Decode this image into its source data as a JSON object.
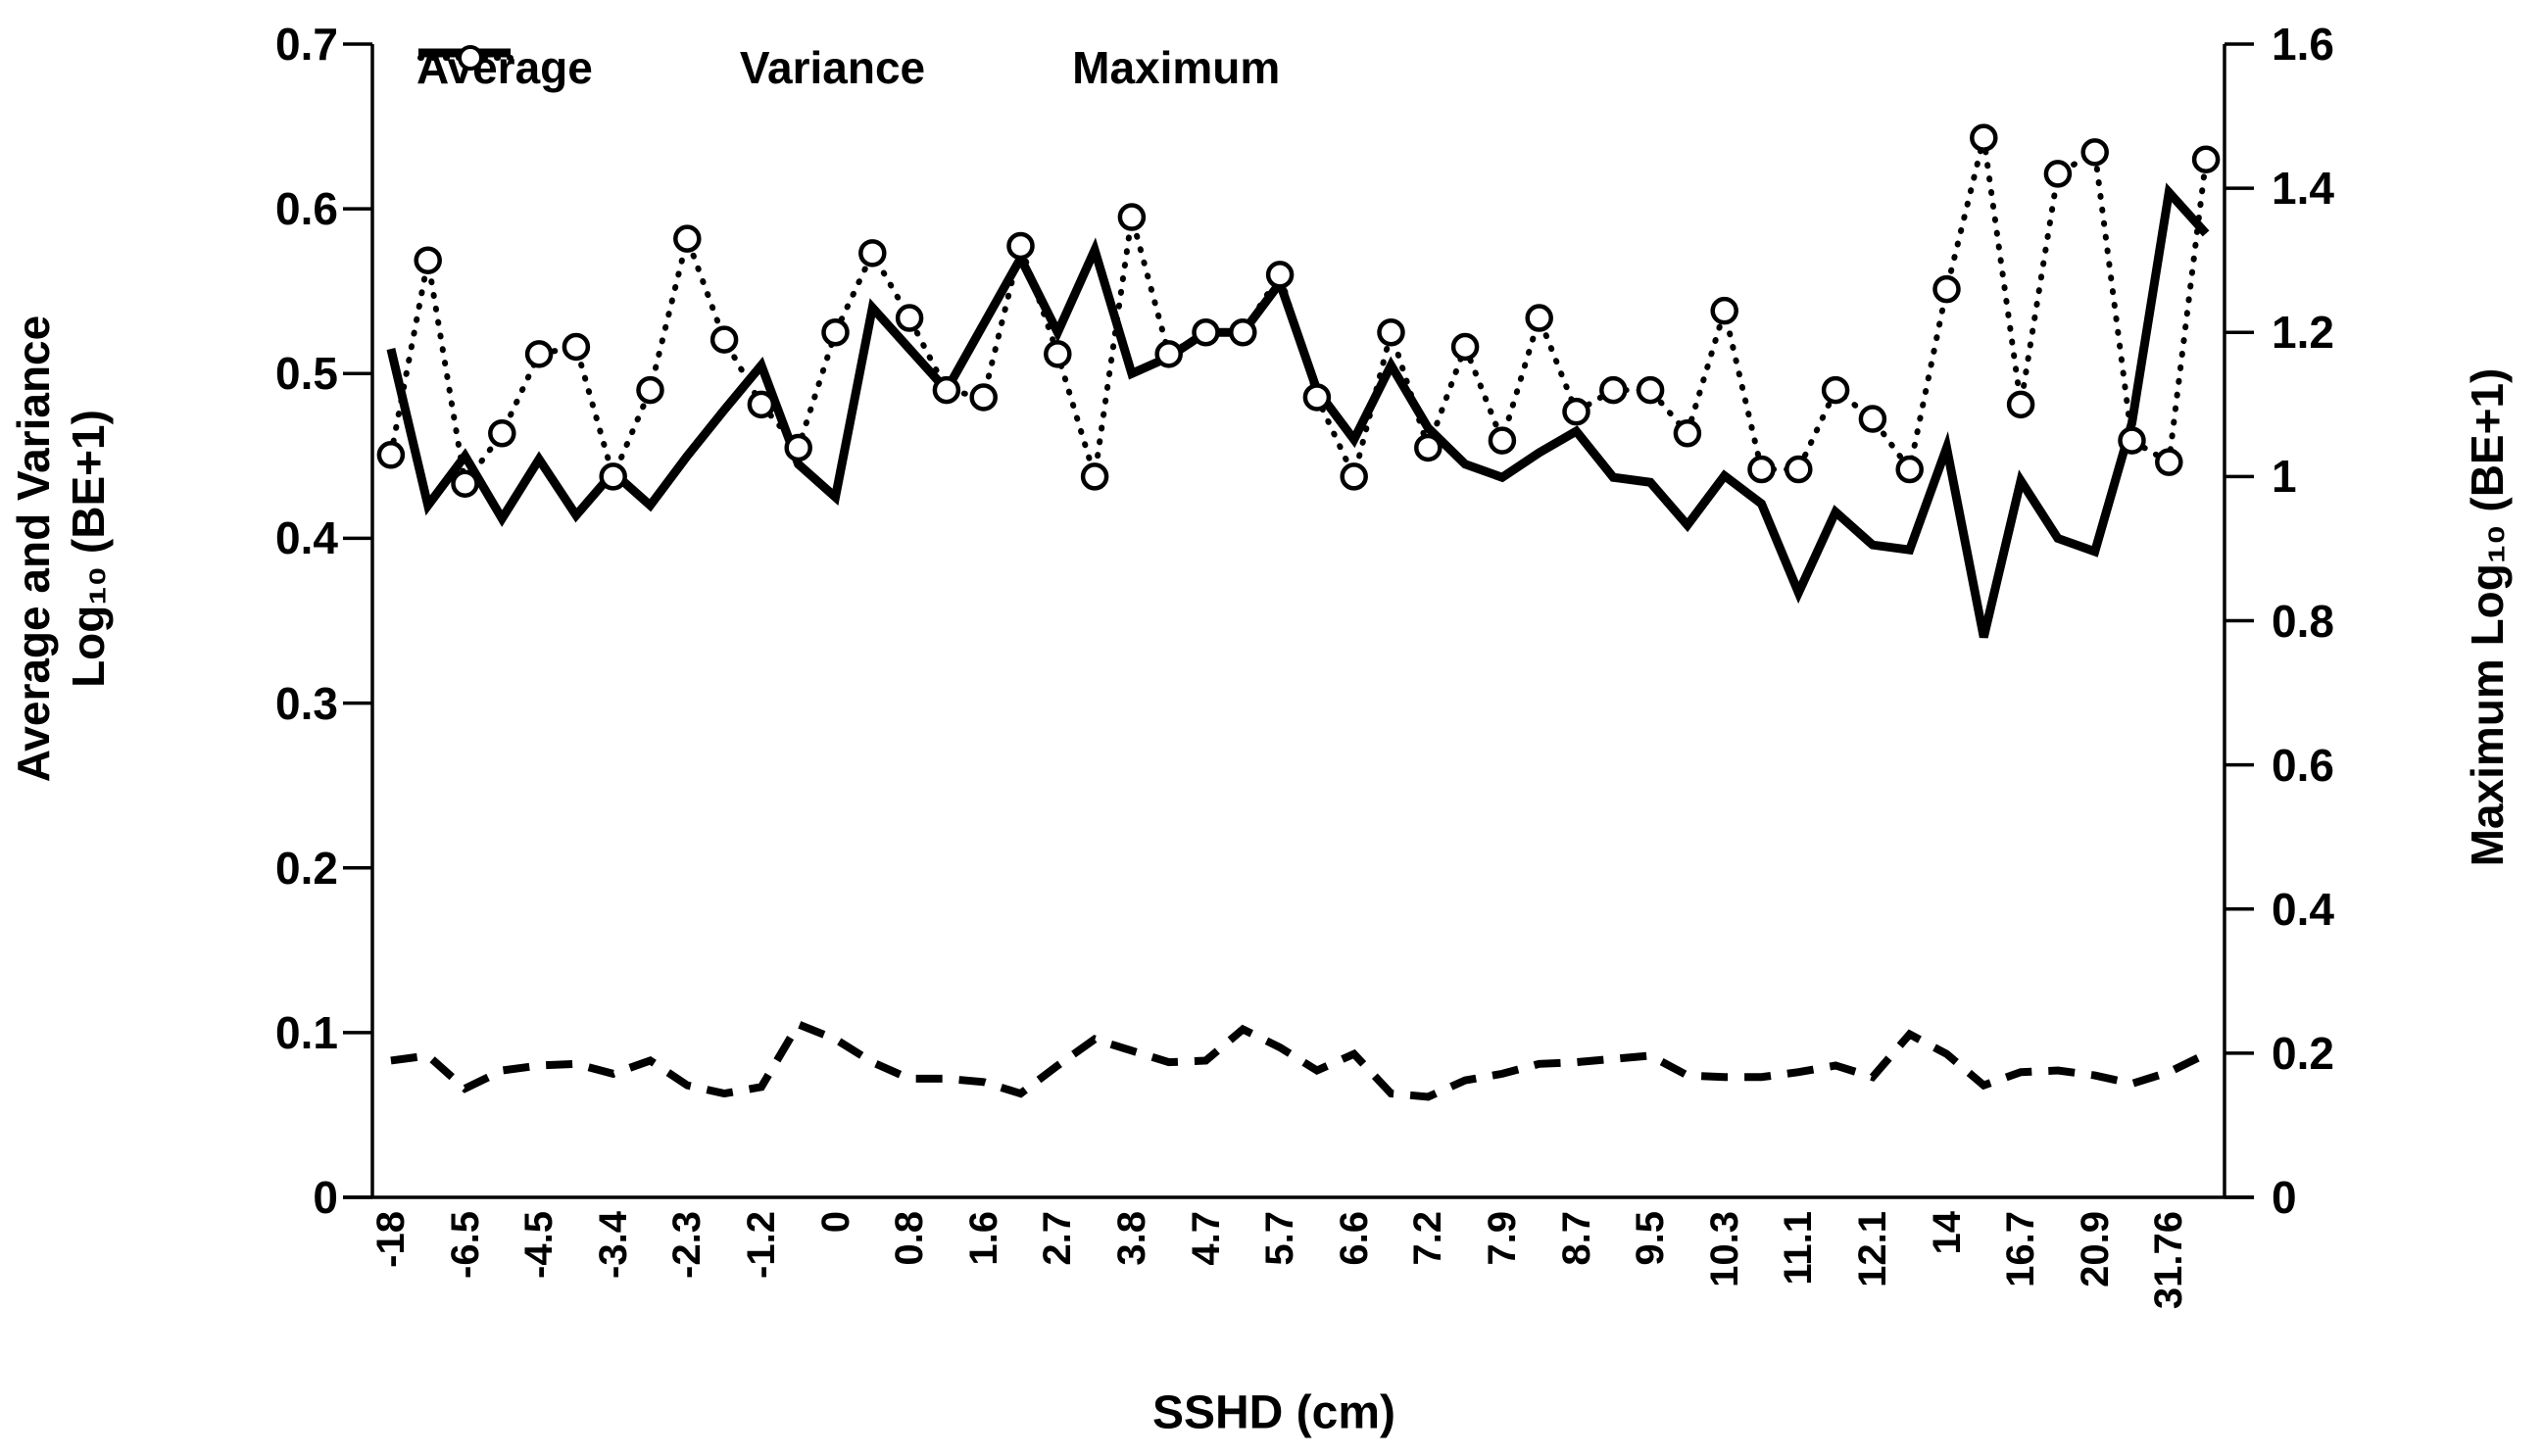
{
  "axes": {
    "y_left_title_line1": "Average and Variance",
    "y_left_title_line2": "Log₁₀ (BE+1)",
    "y_right_title": "Maximum Log₁₀ (BE+1)",
    "x_title": "SSHD (cm)"
  },
  "chart_data": {
    "type": "line",
    "title": "",
    "xlabel": "SSHD (cm)",
    "ylabel_left": "Average and Variance Log₁₀ (BE+1)",
    "ylabel_right": "Maximum Log₁₀ (BE+1)",
    "grid": false,
    "legend_position": "top",
    "background_color": "#ffffff",
    "line_color": "#000000",
    "categories_count": 50,
    "x_tick_labels": [
      "-18",
      "-6.5",
      "-4.5",
      "-3.4",
      "-2.3",
      "-1.2",
      "0",
      "0.8",
      "1.6",
      "2.7",
      "3.8",
      "4.7",
      "5.7",
      "6.6",
      "7.2",
      "7.9",
      "8.7",
      "9.5",
      "10.3",
      "11.1",
      "12.1",
      "14",
      "16.7",
      "20.9",
      "31.76"
    ],
    "x_tick_label_every": 2,
    "axis_left": {
      "min": 0,
      "max": 0.7,
      "ticks": [
        "0.7",
        "0.6",
        "0.5",
        "0.4",
        "0.3",
        "0.2",
        "0.1",
        "0"
      ]
    },
    "axis_right": {
      "min": 0,
      "max": 1.6,
      "ticks": [
        "1.6",
        "1.4",
        "1.2",
        "1",
        "0.8",
        "0.6",
        "0.4",
        "0.2",
        "0"
      ]
    },
    "series": [
      {
        "name": "Average",
        "axis": "left",
        "style": "solid",
        "values": [
          0.515,
          0.42,
          0.45,
          0.412,
          0.448,
          0.414,
          0.44,
          0.42,
          0.45,
          0.478,
          0.505,
          0.445,
          0.425,
          0.54,
          0.515,
          0.49,
          0.53,
          0.57,
          0.525,
          0.575,
          0.5,
          0.51,
          0.525,
          0.525,
          0.555,
          0.49,
          0.46,
          0.505,
          0.467,
          0.445,
          0.437,
          0.452,
          0.465,
          0.437,
          0.434,
          0.408,
          0.438,
          0.421,
          0.367,
          0.416,
          0.396,
          0.393,
          0.455,
          0.34,
          0.435,
          0.4,
          0.392,
          0.47,
          0.61,
          0.585
        ]
      },
      {
        "name": "Variance",
        "axis": "left",
        "style": "dashed",
        "values": [
          0.083,
          0.086,
          0.066,
          0.077,
          0.08,
          0.081,
          0.075,
          0.083,
          0.068,
          0.063,
          0.067,
          0.105,
          0.096,
          0.082,
          0.072,
          0.072,
          0.07,
          0.063,
          0.08,
          0.096,
          0.089,
          0.082,
          0.083,
          0.102,
          0.091,
          0.077,
          0.087,
          0.063,
          0.061,
          0.071,
          0.075,
          0.081,
          0.082,
          0.084,
          0.086,
          0.074,
          0.073,
          0.073,
          0.076,
          0.08,
          0.073,
          0.099,
          0.087,
          0.068,
          0.076,
          0.077,
          0.074,
          0.069,
          0.076,
          0.087
        ]
      },
      {
        "name": "Maximum",
        "axis": "right",
        "style": "dotted-circle",
        "values": [
          1.03,
          1.3,
          0.99,
          1.06,
          1.17,
          1.18,
          1.0,
          1.12,
          1.33,
          1.19,
          1.1,
          1.04,
          1.2,
          1.31,
          1.22,
          1.12,
          1.11,
          1.32,
          1.17,
          1.0,
          1.36,
          1.17,
          1.2,
          1.2,
          1.28,
          1.11,
          1.0,
          1.2,
          1.04,
          1.18,
          1.05,
          1.22,
          1.09,
          1.12,
          1.12,
          1.06,
          1.23,
          1.01,
          1.01,
          1.12,
          1.08,
          1.01,
          1.26,
          1.47,
          1.1,
          1.42,
          1.45,
          1.05,
          1.02,
          1.44
        ]
      }
    ]
  }
}
